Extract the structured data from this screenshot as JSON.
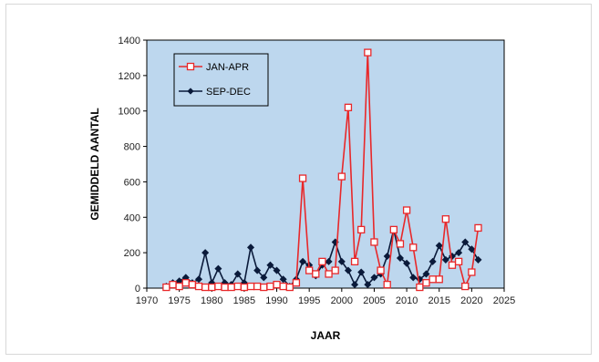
{
  "chart_data": {
    "type": "line",
    "title": "",
    "xlabel": "JAAR",
    "ylabel": "GEMIDDELD AANTAL",
    "xlim": [
      1970,
      2025
    ],
    "ylim": [
      0,
      1400
    ],
    "x_ticks": [
      1970,
      1975,
      1980,
      1985,
      1990,
      1995,
      2000,
      2005,
      2010,
      2015,
      2020,
      2025
    ],
    "y_ticks": [
      0,
      200,
      400,
      600,
      800,
      1000,
      1200,
      1400
    ],
    "grid": false,
    "plot_background": "#bdd7ee",
    "legend_position": "top-left",
    "x": [
      1973,
      1974,
      1975,
      1976,
      1977,
      1978,
      1979,
      1980,
      1981,
      1982,
      1983,
      1984,
      1985,
      1986,
      1987,
      1988,
      1989,
      1990,
      1991,
      1992,
      1993,
      1994,
      1995,
      1996,
      1997,
      1998,
      1999,
      2000,
      2001,
      2002,
      2003,
      2004,
      2005,
      2006,
      2007,
      2008,
      2009,
      2010,
      2011,
      2012,
      2013,
      2014,
      2015,
      2016,
      2017,
      2018,
      2019,
      2020,
      2021
    ],
    "series": [
      {
        "name": "JAN-APR",
        "color": "#e8282a",
        "marker": "square-open",
        "values": [
          5,
          20,
          10,
          30,
          20,
          10,
          5,
          5,
          10,
          5,
          5,
          10,
          5,
          10,
          10,
          5,
          10,
          20,
          10,
          5,
          30,
          620,
          100,
          80,
          150,
          80,
          100,
          630,
          1020,
          150,
          330,
          1330,
          260,
          100,
          20,
          330,
          250,
          440,
          230,
          5,
          30,
          50,
          50,
          390,
          130,
          150,
          10,
          90,
          340
        ]
      },
      {
        "name": "SEP-DEC",
        "color": "#0a1a3a",
        "marker": "diamond",
        "values": [
          10,
          30,
          40,
          60,
          30,
          50,
          200,
          30,
          110,
          30,
          20,
          80,
          30,
          230,
          100,
          60,
          130,
          100,
          50,
          10,
          50,
          150,
          130,
          70,
          130,
          150,
          260,
          150,
          100,
          20,
          90,
          20,
          60,
          80,
          180,
          330,
          170,
          140,
          60,
          50,
          80,
          150,
          240,
          160,
          180,
          200,
          260,
          220,
          160
        ]
      }
    ]
  }
}
